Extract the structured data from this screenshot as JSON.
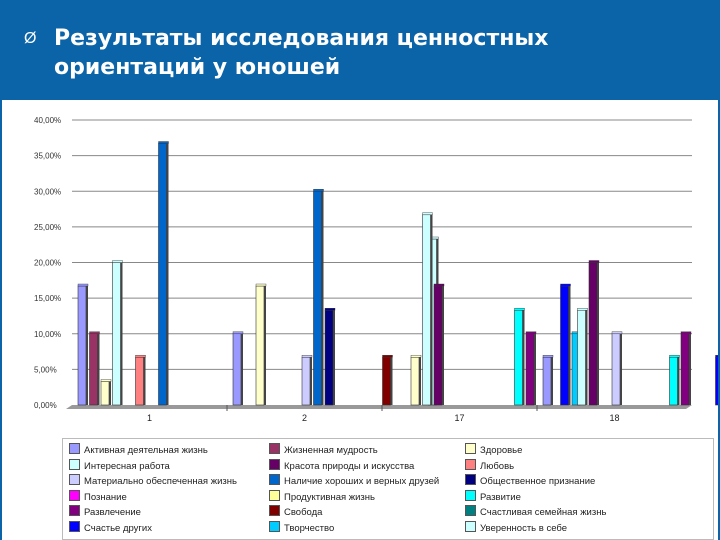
{
  "header": {
    "bullet": "Ø",
    "title": "Результаты исследования ценностных ориентаций у юношей"
  },
  "chart_data": {
    "type": "bar",
    "title": "",
    "xlabel": "",
    "ylabel": "",
    "ylim": [
      0,
      40
    ],
    "y_ticks": [
      "0,00%",
      "5,00%",
      "10,00%",
      "15,00%",
      "20,00%",
      "25,00%",
      "30,00%",
      "35,00%",
      "40,00%"
    ],
    "grid": true,
    "legend_position": "bottom",
    "categories": [
      "1",
      "2",
      "17",
      "18"
    ],
    "series": [
      {
        "name": "Активная деятельная жизнь",
        "color": "#9999ff",
        "values": [
          16.7,
          10,
          0,
          6.7
        ]
      },
      {
        "name": "Жизненная мудрость",
        "color": "#993366",
        "values": [
          10,
          0,
          0,
          0
        ]
      },
      {
        "name": "Здоровье",
        "color": "#ffffcc",
        "values": [
          3.3,
          16.7,
          6.7,
          0
        ]
      },
      {
        "name": "Интересная работа",
        "color": "#ccffff",
        "values": [
          20,
          0,
          26.7,
          13.3
        ]
      },
      {
        "name": "Красота природы и искусства",
        "color": "#660066",
        "values": [
          0,
          0,
          16.7,
          20
        ]
      },
      {
        "name": "Любовь",
        "color": "#ff8080",
        "values": [
          6.7,
          0,
          0,
          0
        ]
      },
      {
        "name": "Материально обеспеченная жизнь",
        "color": "#ccccff",
        "values": [
          0,
          6.7,
          0,
          10
        ]
      },
      {
        "name": "Наличие хороших и верных друзей",
        "color": "#0066cc",
        "values": [
          36.7,
          30,
          0,
          0
        ]
      },
      {
        "name": "Общественное признание",
        "color": "#000080",
        "values": [
          0,
          13.3,
          0,
          0
        ]
      },
      {
        "name": "Познание",
        "color": "#ff00ff",
        "values": [
          0,
          0,
          0,
          0
        ]
      },
      {
        "name": "Продуктивная жизнь",
        "color": "#ffff99",
        "values": [
          0,
          0,
          0,
          0
        ]
      },
      {
        "name": "Развитие",
        "color": "#00ffff",
        "values": [
          0,
          0,
          13.3,
          6.7
        ]
      },
      {
        "name": "Развлечение",
        "color": "#800080",
        "values": [
          0,
          0,
          10,
          10
        ]
      },
      {
        "name": "Свобода",
        "color": "#800000",
        "values": [
          0,
          6.7,
          0,
          0
        ]
      },
      {
        "name": "Счастливая семейная жизнь",
        "color": "#008080",
        "values": [
          0,
          0,
          0,
          0
        ]
      },
      {
        "name": "Счастье других",
        "color": "#0000ff",
        "values": [
          0,
          0,
          16.7,
          6.7
        ]
      },
      {
        "name": "Творчество",
        "color": "#00ccff",
        "values": [
          0,
          0,
          10,
          20
        ]
      },
      {
        "name": "Уверенность в себе",
        "color": "#ccffff",
        "values": [
          0,
          23.3,
          0,
          6.7
        ]
      }
    ]
  }
}
